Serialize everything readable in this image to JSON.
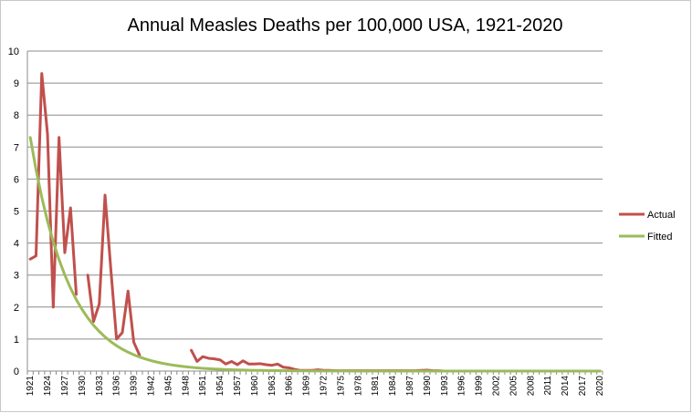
{
  "chart_data": {
    "type": "line",
    "title": "Annual Measles Deaths per 100,000 USA, 1921-2020",
    "xlabel": "",
    "ylabel": "",
    "ylim": [
      0,
      10
    ],
    "yticks": [
      "0",
      "1",
      "2",
      "3",
      "4",
      "5",
      "6",
      "7",
      "8",
      "9",
      "10"
    ],
    "grid": true,
    "legend_position": "right",
    "x_start": 1921,
    "x_end": 2020,
    "xtick_labels": [
      "1921",
      "1924",
      "1927",
      "1930",
      "1933",
      "1936",
      "1939",
      "1942",
      "1945",
      "1948",
      "1951",
      "1954",
      "1957",
      "1960",
      "1963",
      "1966",
      "1969",
      "1972",
      "1975",
      "1978",
      "1981",
      "1984",
      "1987",
      "1990",
      "1993",
      "1996",
      "1999",
      "2002",
      "2005",
      "2008",
      "2011",
      "2014",
      "2017",
      "2020"
    ],
    "series": [
      {
        "name": "Actual",
        "color": "#c0504d",
        "points": [
          [
            1921,
            3.5
          ],
          [
            1922,
            3.6
          ],
          [
            1923,
            9.3
          ],
          [
            1924,
            7.4
          ],
          [
            1925,
            2.0
          ],
          [
            1926,
            7.3
          ],
          [
            1927,
            3.7
          ],
          [
            1928,
            5.1
          ],
          [
            1929,
            2.4
          ],
          [
            1931,
            3.0
          ],
          [
            1932,
            1.55
          ],
          [
            1933,
            2.1
          ],
          [
            1934,
            5.5
          ],
          [
            1935,
            3.2
          ],
          [
            1936,
            1.0
          ],
          [
            1937,
            1.2
          ],
          [
            1938,
            2.5
          ],
          [
            1939,
            0.9
          ],
          [
            1940,
            0.5
          ],
          [
            1949,
            0.65
          ],
          [
            1950,
            0.3
          ],
          [
            1951,
            0.45
          ],
          [
            1952,
            0.4
          ],
          [
            1953,
            0.38
          ],
          [
            1954,
            0.35
          ],
          [
            1955,
            0.22
          ],
          [
            1956,
            0.3
          ],
          [
            1957,
            0.2
          ],
          [
            1958,
            0.32
          ],
          [
            1959,
            0.22
          ],
          [
            1960,
            0.22
          ],
          [
            1961,
            0.23
          ],
          [
            1962,
            0.2
          ],
          [
            1963,
            0.18
          ],
          [
            1964,
            0.22
          ],
          [
            1965,
            0.12
          ],
          [
            1966,
            0.1
          ],
          [
            1967,
            0.05
          ],
          [
            1968,
            0.02
          ],
          [
            1969,
            0.02
          ],
          [
            1970,
            0.02
          ],
          [
            1971,
            0.04
          ],
          [
            1972,
            0.02
          ],
          [
            1973,
            0.02
          ],
          [
            1974,
            0.01
          ],
          [
            1975,
            0.01
          ],
          [
            1976,
            0.01
          ],
          [
            1977,
            0.01
          ],
          [
            1978,
            0.01
          ],
          [
            1979,
            0.01
          ],
          [
            1980,
            0.01
          ],
          [
            1981,
            0.01
          ],
          [
            1982,
            0.01
          ],
          [
            1983,
            0.01
          ],
          [
            1984,
            0.01
          ],
          [
            1985,
            0.01
          ],
          [
            1986,
            0.01
          ],
          [
            1987,
            0.01
          ],
          [
            1988,
            0.01
          ],
          [
            1989,
            0.02
          ],
          [
            1990,
            0.03
          ],
          [
            1991,
            0.01
          ],
          [
            1992,
            0.01
          ],
          [
            1993,
            0.0
          ],
          [
            1994,
            0.0
          ],
          [
            1995,
            0.0
          ],
          [
            1996,
            0.0
          ],
          [
            1997,
            0.0
          ],
          [
            1998,
            0.0
          ],
          [
            1999,
            0.0
          ],
          [
            2000,
            0.0
          ],
          [
            2001,
            0.0
          ],
          [
            2002,
            0.0
          ],
          [
            2003,
            0.0
          ],
          [
            2004,
            0.0
          ],
          [
            2005,
            0.0
          ],
          [
            2006,
            0.0
          ],
          [
            2007,
            0.0
          ],
          [
            2008,
            0.0
          ],
          [
            2009,
            0.0
          ],
          [
            2010,
            0.0
          ],
          [
            2011,
            0.0
          ],
          [
            2012,
            0.0
          ],
          [
            2013,
            0.0
          ],
          [
            2014,
            0.0
          ],
          [
            2015,
            0.0
          ],
          [
            2016,
            0.0
          ],
          [
            2017,
            0.0
          ],
          [
            2018,
            0.0
          ],
          [
            2019,
            0.0
          ],
          [
            2020,
            0.0
          ]
        ]
      },
      {
        "name": "Fitted",
        "color": "#9bbb59",
        "model": {
          "type": "exponential",
          "a": 7.3,
          "b": 0.148,
          "x0": 1921
        }
      }
    ]
  }
}
